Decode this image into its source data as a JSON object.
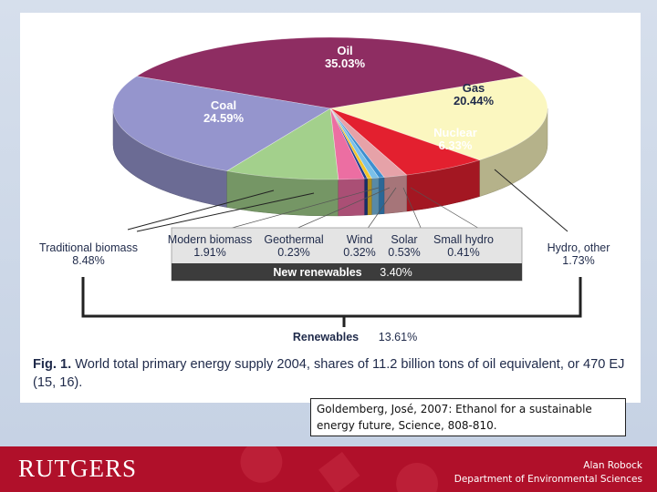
{
  "chart_data": {
    "type": "pie",
    "slices": [
      {
        "name": "Oil",
        "value": 35.03,
        "label": "35.03%",
        "color": "#8e2d62"
      },
      {
        "name": "Gas",
        "value": 20.44,
        "label": "20.44%",
        "color": "#fbf7c0"
      },
      {
        "name": "Nuclear",
        "value": 6.33,
        "label": "6.33%",
        "color": "#e3202f"
      },
      {
        "name": "Hydro, other",
        "value": 1.73,
        "label": "1.73%",
        "color": "#e6a2a8"
      },
      {
        "name": "Small hydro",
        "value": 0.41,
        "label": "0.41%",
        "color": "#3c8fd0"
      },
      {
        "name": "Solar",
        "value": 0.53,
        "label": "0.53%",
        "color": "#7ac0e8"
      },
      {
        "name": "Wind",
        "value": 0.32,
        "label": "0.32%",
        "color": "#f3c52a"
      },
      {
        "name": "Geothermal",
        "value": 0.23,
        "label": "0.23%",
        "color": "#1f3e92"
      },
      {
        "name": "Modern biomass",
        "value": 1.91,
        "label": "1.91%",
        "color": "#ec6ea2"
      },
      {
        "name": "Traditional biomass",
        "value": 8.48,
        "label": "8.48%",
        "color": "#a3d08c"
      },
      {
        "name": "Coal",
        "value": 24.59,
        "label": "24.59%",
        "color": "#9595cd"
      }
    ],
    "groups": {
      "new_renewables": {
        "label": "New renewables",
        "value": "3.40%"
      },
      "renewables": {
        "label": "Renewables",
        "value": "13.61%"
      }
    }
  },
  "caption": {
    "fig_label": "Fig. 1.",
    "text": "World total primary energy supply 2004, shares of 11.2 billion tons of oil equivalent, or 470 EJ (15, 16)."
  },
  "citation": "Goldemberg, José, 2007: Ethanol for a sustainable energy future, Science, 808-810.",
  "footer": {
    "logo": "RUTGERS",
    "author": "Alan Robock",
    "department": "Department of Environmental Sciences"
  }
}
